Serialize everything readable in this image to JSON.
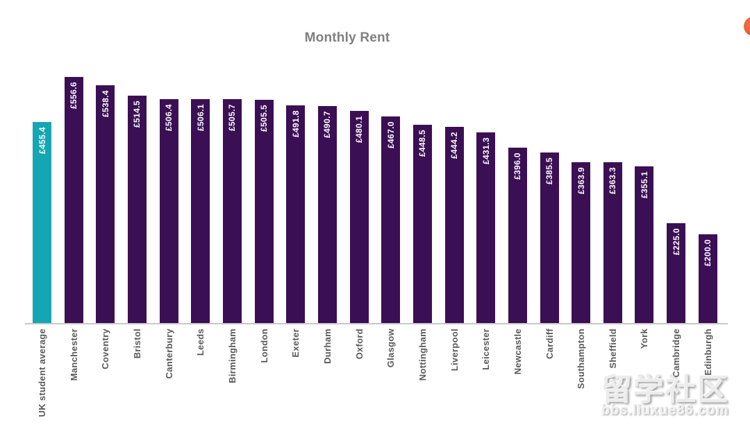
{
  "chart_data": {
    "type": "bar",
    "title": "Monthly Rent",
    "categories": [
      "UK student average",
      "Manchester",
      "Coventry",
      "Bristol",
      "Canterbury",
      "Leeds",
      "Birmingham",
      "London",
      "Exeter",
      "Durham",
      "Oxford",
      "Glasgow",
      "Nottingham",
      "Liverpool",
      "Leicester",
      "Newcastle",
      "Cardiff",
      "Southampton",
      "Sheffield",
      "York",
      "Cambridge",
      "Edinburgh"
    ],
    "values": [
      455.4,
      556.6,
      538.4,
      514.5,
      506.4,
      506.1,
      505.7,
      505.5,
      491.8,
      490.7,
      480.1,
      467.0,
      448.5,
      444.2,
      431.3,
      396.0,
      385.5,
      363.9,
      363.3,
      355.1,
      225.0,
      200.0
    ],
    "value_labels": [
      "£455.4",
      "£556.6",
      "£538.4",
      "£514.5",
      "£506.4",
      "£506.1",
      "£505.7",
      "£505.5",
      "£491.8",
      "£490.7",
      "£480.1",
      "£467.0",
      "£448.5",
      "£444.2",
      "£431.3",
      "£396.0",
      "£385.5",
      "£363.9",
      "£363.3",
      "£355.1",
      "£225.0",
      "£200.0"
    ],
    "xlabel": "",
    "ylabel": "",
    "ylim": [
      0,
      580
    ],
    "grid": false,
    "legend": false,
    "currency": "£",
    "bar_color_default": "#3B0F54",
    "bar_color_highlight": "#15A6B3",
    "highlight_index": 0,
    "highlight_category": "UK student average",
    "value_label_position": "inside-top-rotated",
    "category_label_rotation": "vertical-bottom-to-top"
  },
  "colors": {
    "title": "#7F7F7F",
    "category_label": "#595959",
    "axis_line": "#C8C8C8",
    "orange_circle": "#E4572E",
    "background": "#FFFFFF"
  },
  "watermark": {
    "line1": "留学社区",
    "line2": "bbs.liuxue86.com"
  }
}
